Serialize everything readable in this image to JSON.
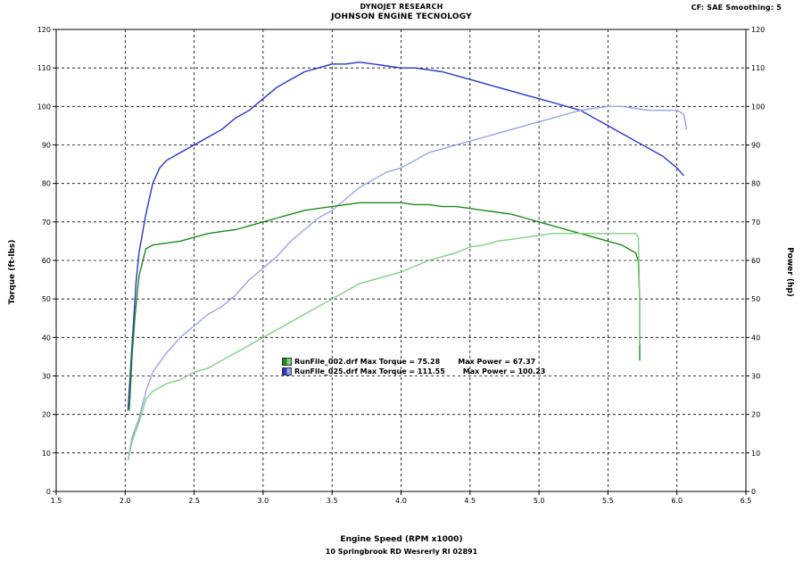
{
  "header": {
    "line1": "DYNOJET RESEARCH",
    "line2": "JOHNSON ENGINE TECNOLOGY",
    "cf_info": "CF: SAE  Smoothing: 5"
  },
  "footer": "10 Springbrook RD Wesrerly RI 02891",
  "legend": [
    {
      "file": "RunFile_002.drf",
      "max_torque": "Max Torque = 75.28",
      "max_power": "Max Power = 67.37",
      "color_dark": "#1a8c1a",
      "color_light": "#7fd07f"
    },
    {
      "file": "RunFile_025.drf",
      "max_torque": "Max Torque = 111.55",
      "max_power": "Max Power = 100.23",
      "color_dark": "#2a35c8",
      "color_light": "#9aa2ec"
    }
  ],
  "chart_data": {
    "type": "line",
    "xlabel": "Engine Speed (RPM x1000)",
    "ylabel": "Torque (ft-lbs)",
    "y2label": "Power (hp)",
    "xlim": [
      1.5,
      6.5
    ],
    "ylim": [
      0,
      120
    ],
    "y2lim": [
      0,
      120
    ],
    "x_ticks": [
      "1.5",
      "2.0",
      "2.5",
      "3.0",
      "3.5",
      "4.0",
      "4.5",
      "5.0",
      "5.5",
      "6.0",
      "6.5"
    ],
    "y_ticks": [
      "0",
      "10",
      "20",
      "30",
      "40",
      "50",
      "60",
      "70",
      "80",
      "90",
      "100",
      "110",
      "120"
    ],
    "grid": true,
    "series": [
      {
        "name": "RunFile_025.drf Torque",
        "axis": "left",
        "color": "#2a35c8",
        "x": [
          2.02,
          2.05,
          2.08,
          2.1,
          2.15,
          2.2,
          2.25,
          2.3,
          2.4,
          2.5,
          2.6,
          2.7,
          2.8,
          2.9,
          3.0,
          3.1,
          3.2,
          3.3,
          3.4,
          3.5,
          3.6,
          3.7,
          3.8,
          3.9,
          4.0,
          4.1,
          4.2,
          4.3,
          4.4,
          4.5,
          4.6,
          4.7,
          4.8,
          4.9,
          5.0,
          5.1,
          5.2,
          5.3,
          5.4,
          5.5,
          5.6,
          5.7,
          5.8,
          5.9,
          6.0,
          6.05
        ],
        "y": [
          21,
          38,
          55,
          62,
          72,
          80,
          84,
          86,
          88,
          90,
          92,
          94,
          97,
          99,
          102,
          105,
          107,
          109,
          110,
          111,
          111,
          111.5,
          111,
          110.5,
          110,
          110,
          109.5,
          109,
          108,
          107,
          106,
          105,
          104,
          103,
          102,
          101,
          100,
          99,
          97,
          95,
          93,
          91,
          89,
          87,
          84,
          82
        ]
      },
      {
        "name": "RunFile_025.drf Power",
        "axis": "right",
        "color": "#9aa2ec",
        "x": [
          2.02,
          2.05,
          2.1,
          2.15,
          2.2,
          2.3,
          2.4,
          2.5,
          2.6,
          2.7,
          2.8,
          2.9,
          3.0,
          3.1,
          3.2,
          3.3,
          3.4,
          3.5,
          3.6,
          3.7,
          3.8,
          3.9,
          4.0,
          4.1,
          4.2,
          4.3,
          4.4,
          4.5,
          4.6,
          4.7,
          4.8,
          4.9,
          5.0,
          5.1,
          5.2,
          5.3,
          5.4,
          5.5,
          5.6,
          5.7,
          5.8,
          5.9,
          6.0,
          6.05,
          6.07
        ],
        "y": [
          8,
          14,
          19,
          26,
          31,
          36,
          40,
          43,
          46,
          48,
          51,
          55,
          58,
          61,
          65,
          68,
          71,
          73,
          76,
          79,
          81,
          83,
          84,
          86,
          88,
          89,
          90,
          91,
          92,
          93,
          94,
          95,
          96,
          97,
          98,
          99,
          99.5,
          100,
          100,
          99.5,
          99,
          99,
          99,
          98,
          94
        ]
      },
      {
        "name": "RunFile_002.drf Torque",
        "axis": "left",
        "color": "#1a8c1a",
        "x": [
          2.03,
          2.05,
          2.07,
          2.1,
          2.15,
          2.2,
          2.3,
          2.4,
          2.5,
          2.6,
          2.7,
          2.8,
          2.9,
          3.0,
          3.1,
          3.2,
          3.3,
          3.4,
          3.5,
          3.6,
          3.7,
          3.8,
          3.9,
          4.0,
          4.1,
          4.2,
          4.3,
          4.4,
          4.5,
          4.6,
          4.7,
          4.8,
          4.9,
          5.0,
          5.1,
          5.2,
          5.3,
          5.4,
          5.5,
          5.6,
          5.65,
          5.7,
          5.72,
          5.73,
          5.73
        ],
        "y": [
          21,
          35,
          45,
          56,
          63,
          64,
          64.5,
          65,
          66,
          67,
          67.5,
          68,
          69,
          70,
          71,
          72,
          73,
          73.5,
          74,
          74.5,
          75,
          75,
          75,
          75,
          74.5,
          74.5,
          74,
          74,
          73.5,
          73,
          72.5,
          72,
          71,
          70,
          69,
          68,
          67,
          66,
          65,
          64,
          63,
          62,
          60,
          50,
          34
        ]
      },
      {
        "name": "RunFile_002.drf Power",
        "axis": "right",
        "color": "#7fd07f",
        "x": [
          2.02,
          2.05,
          2.1,
          2.15,
          2.2,
          2.3,
          2.4,
          2.5,
          2.6,
          2.7,
          2.8,
          2.9,
          3.0,
          3.1,
          3.2,
          3.3,
          3.4,
          3.5,
          3.6,
          3.7,
          3.8,
          3.9,
          4.0,
          4.1,
          4.2,
          4.3,
          4.4,
          4.5,
          4.6,
          4.7,
          4.8,
          4.9,
          5.0,
          5.1,
          5.2,
          5.3,
          5.4,
          5.5,
          5.6,
          5.65,
          5.7,
          5.72,
          5.73,
          5.73
        ],
        "y": [
          8,
          13,
          18,
          24,
          26,
          28,
          29,
          31,
          32,
          34,
          36,
          38,
          40,
          42,
          44,
          46,
          48,
          50,
          52,
          54,
          55,
          56,
          57,
          58.5,
          60,
          61,
          62,
          63.5,
          64,
          65,
          65.5,
          66,
          66.5,
          67,
          67,
          67,
          67,
          67,
          67,
          67,
          67,
          66,
          50,
          38
        ]
      }
    ]
  }
}
